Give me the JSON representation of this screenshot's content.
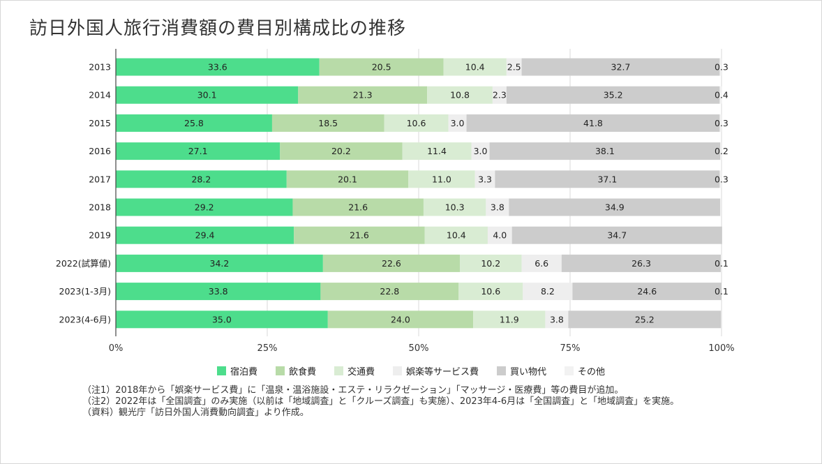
{
  "title": "訪日外国人旅行消費額の費目別構成比の推移",
  "chart_data": {
    "type": "bar",
    "orientation": "horizontal",
    "stacked": true,
    "title": "訪日外国人旅行消費額の費目別構成比の推移",
    "xlim": [
      0,
      100
    ],
    "x_ticks": [
      "0%",
      "25%",
      "50%",
      "75%",
      "100%"
    ],
    "grid": true,
    "legend_position": "bottom",
    "categories": [
      "2013",
      "2014",
      "2015",
      "2016",
      "2017",
      "2018",
      "2019",
      "2022(試算値)",
      "2023(1-3月)",
      "2023(4-6月)"
    ],
    "series": [
      {
        "name": "宿泊費",
        "color": "#4ddd8c",
        "values": [
          33.6,
          30.1,
          25.8,
          27.1,
          28.2,
          29.2,
          29.4,
          34.2,
          33.8,
          35.0
        ],
        "labels": [
          "33.6",
          "30.1",
          "25.8",
          "27.1",
          "28.2",
          "29.2",
          "29.4",
          "34.2",
          "33.8",
          "35.0"
        ]
      },
      {
        "name": "飲食費",
        "color": "#b8dba8",
        "values": [
          20.5,
          21.3,
          18.5,
          20.2,
          20.1,
          21.6,
          21.6,
          22.6,
          22.8,
          24.0
        ],
        "labels": [
          "20.5",
          "21.3",
          "18.5",
          "20.2",
          "20.1",
          "21.6",
          "21.6",
          "22.6",
          "22.8",
          "24.0"
        ]
      },
      {
        "name": "交通費",
        "color": "#d9ecd3",
        "values": [
          10.4,
          10.8,
          10.6,
          11.4,
          11.0,
          10.3,
          10.4,
          10.2,
          10.6,
          11.9
        ],
        "labels": [
          "10.4",
          "10.8",
          "10.6",
          "11.4",
          "11.0",
          "10.3",
          "10.4",
          "10.2",
          "10.6",
          "11.9"
        ]
      },
      {
        "name": "娯楽等サービス費",
        "color": "#eeeeee",
        "values": [
          2.5,
          2.3,
          3.0,
          3.0,
          3.3,
          3.8,
          4.0,
          6.6,
          8.2,
          3.8
        ],
        "labels": [
          "2.5",
          "2.3",
          "3.0",
          "3.0",
          "3.3",
          "3.8",
          "4.0",
          "6.6",
          "8.2",
          "3.8"
        ]
      },
      {
        "name": "買い物代",
        "color": "#cccccc",
        "values": [
          32.7,
          35.2,
          41.8,
          38.1,
          37.1,
          34.9,
          34.7,
          26.3,
          24.6,
          25.2
        ],
        "labels": [
          "32.7",
          "35.2",
          "41.8",
          "38.1",
          "37.1",
          "34.9",
          "34.7",
          "26.3",
          "24.6",
          "25.2"
        ]
      },
      {
        "name": "その他",
        "color": "#f2f2f2",
        "values": [
          0.3,
          0.4,
          0.3,
          0.2,
          0.3,
          0,
          0,
          0.1,
          0.1,
          0
        ],
        "labels": [
          "0.3",
          "0.4",
          "0.3",
          "0.2",
          "0.3",
          "",
          "",
          "0.1",
          "0.1",
          ""
        ]
      }
    ]
  },
  "notes": [
    "（注1）2018年から「娯楽サービス費」に「温泉・温浴施設・エステ・リラクゼーション」「マッサージ・医療費」等の費目が追加。",
    "（注2）2022年は「全国調査」のみ実施（以前は「地域調査」と「クルーズ調査」も実施）、2023年4-6月は「全国調査」と「地域調査」を実施。",
    "（資料）観光庁「訪日外国人消費動向調査」より作成。"
  ]
}
